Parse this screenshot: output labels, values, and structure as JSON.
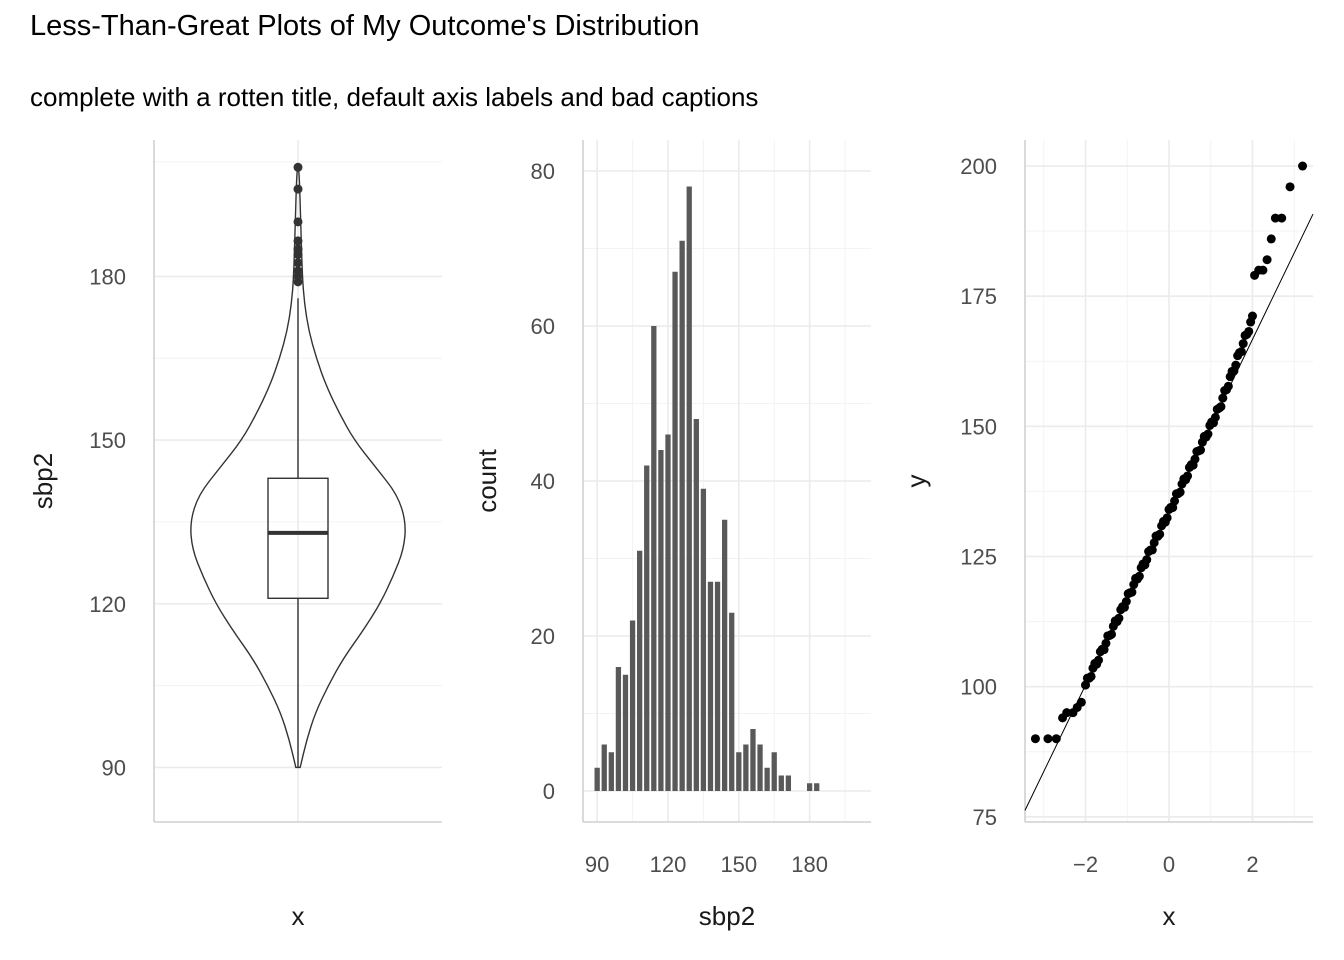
{
  "title": "Less-Than-Great Plots of My Outcome's Distribution",
  "subtitle": "complete with a rotten title, default axis labels and bad captions",
  "chart_data": [
    {
      "type": "violin+boxplot",
      "xlabel": "x",
      "ylabel": "sbp2",
      "ylim": [
        80,
        205
      ],
      "yticks": [
        90,
        120,
        150,
        180
      ],
      "box": {
        "min": 90,
        "q1": 121,
        "median": 133,
        "q3": 143,
        "whisker_high": 176
      },
      "outliers": [
        179,
        180,
        181,
        182.5,
        184,
        185,
        186.5,
        190,
        196,
        200
      ],
      "violin_profile": [
        [
          90,
          0.02
        ],
        [
          95,
          0.08
        ],
        [
          100,
          0.16
        ],
        [
          105,
          0.28
        ],
        [
          110,
          0.42
        ],
        [
          115,
          0.6
        ],
        [
          120,
          0.76
        ],
        [
          125,
          0.88
        ],
        [
          130,
          0.98
        ],
        [
          135,
          1.0
        ],
        [
          140,
          0.92
        ],
        [
          145,
          0.72
        ],
        [
          150,
          0.52
        ],
        [
          155,
          0.38
        ],
        [
          160,
          0.26
        ],
        [
          165,
          0.17
        ],
        [
          170,
          0.1
        ],
        [
          175,
          0.06
        ],
        [
          180,
          0.04
        ],
        [
          190,
          0.025
        ],
        [
          200,
          0.01
        ]
      ]
    },
    {
      "type": "bar",
      "xlabel": "sbp2",
      "ylabel": "count",
      "xlim": [
        84,
        206
      ],
      "ylim": [
        -4,
        84
      ],
      "xticks": [
        90,
        120,
        150,
        180
      ],
      "yticks": [
        0,
        20,
        40,
        60,
        80
      ],
      "bin_centers": [
        90,
        93,
        96,
        99,
        102,
        105,
        108,
        111,
        114,
        117,
        120,
        123,
        126,
        129,
        132,
        135,
        138,
        141,
        144,
        147,
        150,
        153,
        156,
        159,
        162,
        165,
        168,
        171,
        174,
        177,
        180,
        183,
        186,
        189,
        192,
        195,
        198,
        201
      ],
      "values": [
        3,
        6,
        5,
        16,
        15,
        22,
        31,
        42,
        60,
        44,
        46,
        67,
        71,
        78,
        48,
        39,
        27,
        27,
        35,
        23,
        5,
        6,
        8,
        6,
        3,
        5,
        2,
        2,
        0,
        0,
        1,
        1,
        0,
        0,
        0,
        0,
        0,
        0
      ]
    },
    {
      "type": "scatter",
      "subtype": "qq-plot",
      "xlabel": "x",
      "ylabel": "y",
      "xlim": [
        -3.45,
        3.45
      ],
      "ylim": [
        74,
        205
      ],
      "xticks": [
        -2,
        0,
        2
      ],
      "yticks": [
        75,
        100,
        125,
        150,
        175,
        200
      ],
      "reference_line": {
        "intercept": 133.5,
        "slope": 16.6
      },
      "tail_points": [
        [
          -3.2,
          90
        ],
        [
          -2.9,
          90
        ],
        [
          -2.7,
          90
        ],
        [
          -2.55,
          94
        ],
        [
          -2.45,
          95
        ],
        [
          -2.3,
          95
        ],
        [
          -2.2,
          96
        ],
        [
          -2.1,
          97
        ],
        [
          2.05,
          179
        ],
        [
          2.15,
          180
        ],
        [
          2.25,
          180
        ],
        [
          2.35,
          182
        ],
        [
          2.45,
          186
        ],
        [
          2.55,
          190
        ],
        [
          2.7,
          190
        ],
        [
          2.9,
          196
        ],
        [
          3.2,
          200
        ]
      ]
    }
  ]
}
